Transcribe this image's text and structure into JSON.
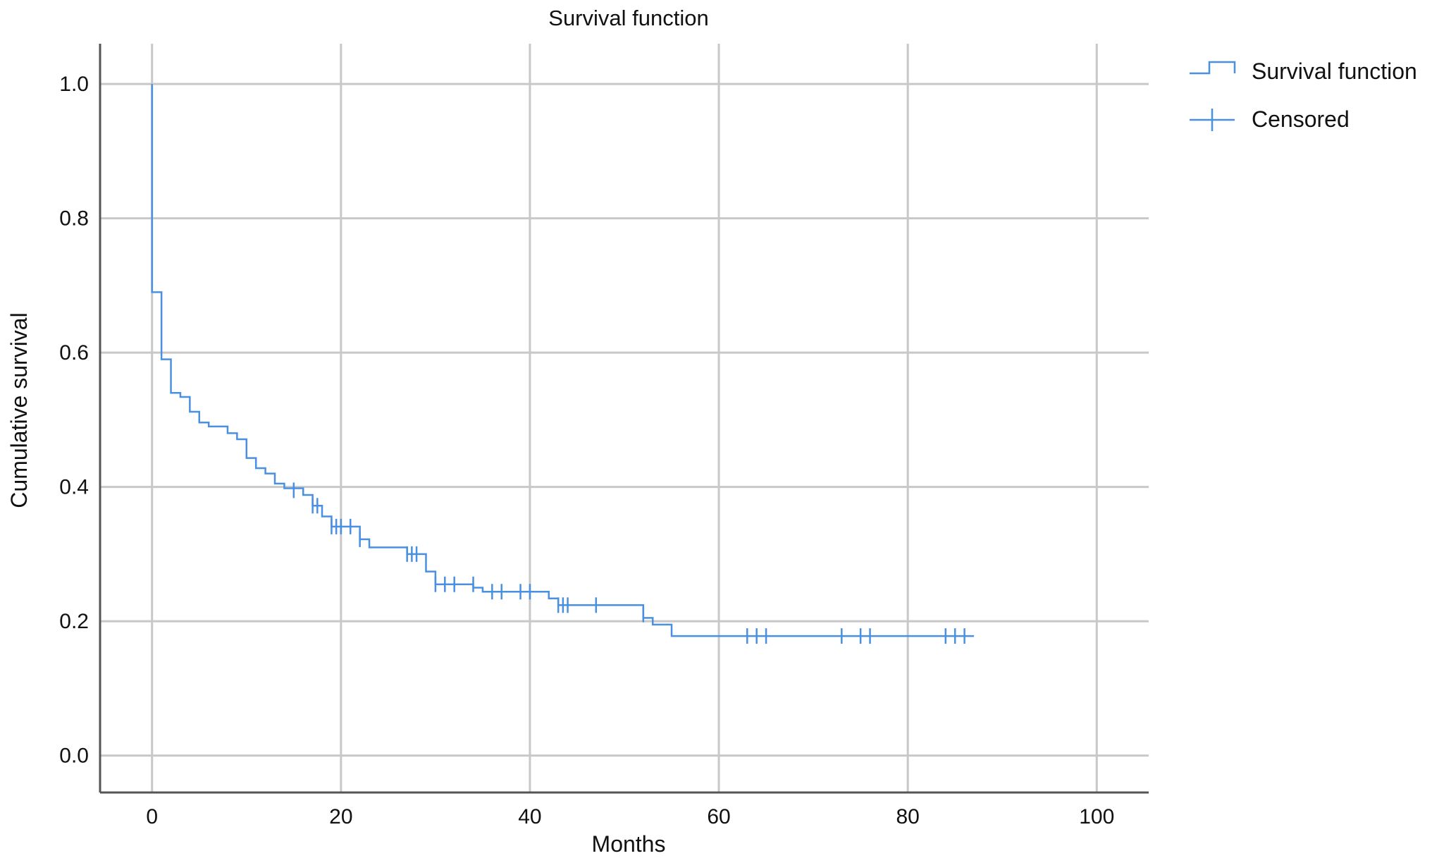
{
  "chart_data": {
    "type": "line",
    "title": "Survival function",
    "xlabel": "Months",
    "ylabel": "Cumulative survival",
    "xlim": [
      -5.5,
      105.5
    ],
    "ylim": [
      -0.055,
      1.06
    ],
    "xticks": [
      "0",
      "20",
      "40",
      "60",
      "80",
      "100"
    ],
    "yticks": [
      "0.0",
      "0.2",
      "0.4",
      "0.6",
      "0.8",
      "1.0"
    ],
    "grid": true,
    "legend_position": "top-right",
    "legend": [
      "Survival function",
      "Censored"
    ],
    "colors": {
      "series": "#4a90e2",
      "grid": "#c8c8c8",
      "axis": "#555555"
    },
    "series": [
      {
        "name": "Survival function",
        "steps": [
          [
            0,
            1.0
          ],
          [
            0,
            0.69
          ],
          [
            1,
            0.69
          ],
          [
            1,
            0.59
          ],
          [
            2,
            0.59
          ],
          [
            2,
            0.54
          ],
          [
            3,
            0.54
          ],
          [
            3,
            0.534
          ],
          [
            4,
            0.534
          ],
          [
            4,
            0.512
          ],
          [
            5,
            0.512
          ],
          [
            5,
            0.496
          ],
          [
            6,
            0.496
          ],
          [
            6,
            0.49
          ],
          [
            8,
            0.49
          ],
          [
            8,
            0.48
          ],
          [
            9,
            0.48
          ],
          [
            9,
            0.471
          ],
          [
            10,
            0.471
          ],
          [
            10,
            0.443
          ],
          [
            11,
            0.443
          ],
          [
            11,
            0.428
          ],
          [
            12,
            0.428
          ],
          [
            12,
            0.42
          ],
          [
            13,
            0.42
          ],
          [
            13,
            0.405
          ],
          [
            14,
            0.405
          ],
          [
            14,
            0.398
          ],
          [
            16,
            0.398
          ],
          [
            16,
            0.388
          ],
          [
            17,
            0.388
          ],
          [
            17,
            0.372
          ],
          [
            18,
            0.372
          ],
          [
            18,
            0.356
          ],
          [
            19,
            0.356
          ],
          [
            19,
            0.341
          ],
          [
            22,
            0.341
          ],
          [
            22,
            0.322
          ],
          [
            23,
            0.322
          ],
          [
            23,
            0.31
          ],
          [
            27,
            0.31
          ],
          [
            27,
            0.3
          ],
          [
            29,
            0.3
          ],
          [
            29,
            0.274
          ],
          [
            30,
            0.274
          ],
          [
            30,
            0.255
          ],
          [
            34,
            0.255
          ],
          [
            34,
            0.25
          ],
          [
            35,
            0.25
          ],
          [
            35,
            0.244
          ],
          [
            42,
            0.244
          ],
          [
            42,
            0.234
          ],
          [
            43,
            0.234
          ],
          [
            43,
            0.224
          ],
          [
            52,
            0.224
          ],
          [
            52,
            0.205
          ],
          [
            53,
            0.205
          ],
          [
            53,
            0.195
          ],
          [
            55,
            0.195
          ],
          [
            55,
            0.178
          ],
          [
            87,
            0.178
          ]
        ]
      },
      {
        "name": "Censored",
        "points": [
          [
            15,
            0.395
          ],
          [
            17,
            0.372
          ],
          [
            17.5,
            0.372
          ],
          [
            19,
            0.341
          ],
          [
            19.5,
            0.341
          ],
          [
            20,
            0.341
          ],
          [
            21,
            0.341
          ],
          [
            22,
            0.322
          ],
          [
            27,
            0.3
          ],
          [
            27.5,
            0.3
          ],
          [
            28,
            0.3
          ],
          [
            30,
            0.255
          ],
          [
            31,
            0.255
          ],
          [
            32,
            0.255
          ],
          [
            34,
            0.255
          ],
          [
            36,
            0.244
          ],
          [
            37,
            0.244
          ],
          [
            39,
            0.244
          ],
          [
            40,
            0.244
          ],
          [
            43,
            0.224
          ],
          [
            43.5,
            0.224
          ],
          [
            44,
            0.224
          ],
          [
            47,
            0.224
          ],
          [
            52,
            0.21
          ],
          [
            63,
            0.178
          ],
          [
            64,
            0.178
          ],
          [
            65,
            0.178
          ],
          [
            73,
            0.178
          ],
          [
            75,
            0.178
          ],
          [
            76,
            0.178
          ],
          [
            84,
            0.178
          ],
          [
            85,
            0.178
          ],
          [
            86,
            0.178
          ]
        ]
      }
    ]
  }
}
